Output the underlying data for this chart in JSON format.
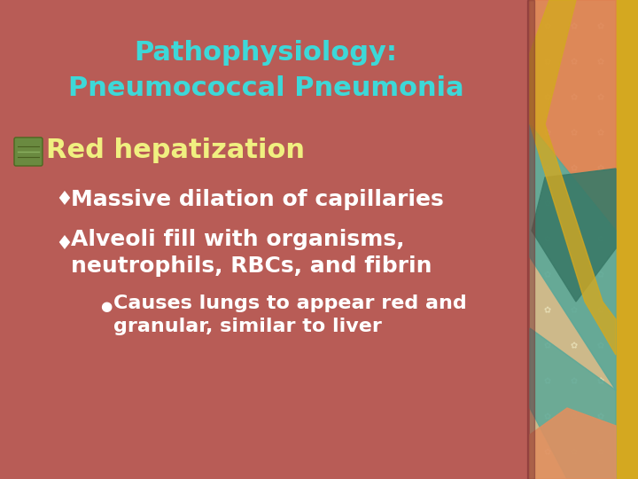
{
  "title_line1": "Pathophysiology:",
  "title_line2": "Pneumococcal Pneumonia",
  "title_color": "#3DD8D8",
  "bg_color": "#B85C56",
  "section_heading": "Red hepatization",
  "section_color": "#F0F080",
  "bullet1": "Massive dilation of capillaries",
  "bullet2_line1": "Alveoli fill with organisms,",
  "bullet2_line2": "neutrophils, RBCs, and fibrin",
  "sub_bullet_line1": "Causes lungs to appear red and",
  "sub_bullet_line2": "granular, similar to liver",
  "bullet_color": "#FFFFFF",
  "sub_bullet_color": "#FFFFFF",
  "diamond": "♦",
  "circle": "●",
  "fig_width": 7.2,
  "fig_height": 5.4,
  "dpi": 100,
  "gold_color": "#D4A820",
  "beige_color": "#CDB98A",
  "teal_color": "#5BA898",
  "orange_color": "#E08050",
  "dark_teal_color": "#3A7A68"
}
